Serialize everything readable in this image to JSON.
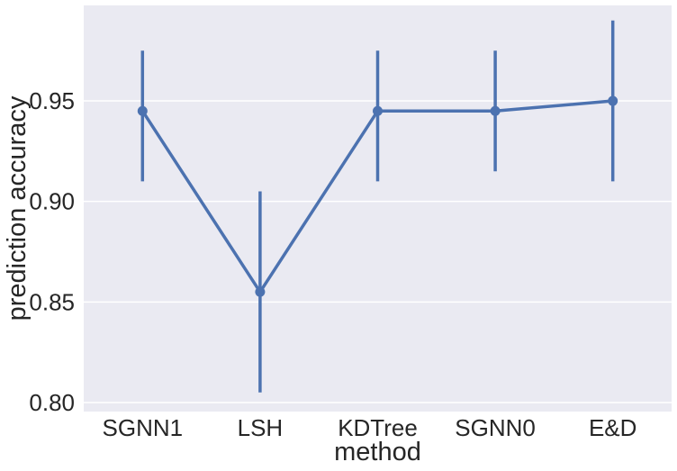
{
  "chart_data": {
    "type": "line",
    "style": "seaborn-pointplot",
    "categories": [
      "SGNN1",
      "LSH",
      "KDTree",
      "SGNN0",
      "E&D"
    ],
    "series": [
      {
        "values": [
          0.945,
          0.855,
          0.945,
          0.945,
          0.95
        ],
        "ci_low": [
          0.91,
          0.805,
          0.91,
          0.915,
          0.91
        ],
        "ci_high": [
          0.975,
          0.905,
          0.975,
          0.975,
          0.99
        ],
        "color": "#4c72b0"
      }
    ],
    "xlabel": "method",
    "ylabel": "prediction accuracy",
    "ylim": [
      0.7955,
      0.9975
    ],
    "yticks": [
      0.8,
      0.85,
      0.9,
      0.95
    ],
    "ytick_labels": [
      "0.80",
      "0.85",
      "0.90",
      "0.95"
    ],
    "grid": "horizontal",
    "background": "#eaeaf2",
    "grid_color": "#ffffff"
  }
}
